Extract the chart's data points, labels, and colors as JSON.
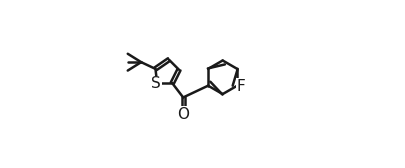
{
  "figsize": [
    4.05,
    1.68
  ],
  "dpi": 100,
  "background_color": "#ffffff",
  "line_color": "#1a1a1a",
  "line_width": 1.8,
  "font_size": 11,
  "S_label": "S",
  "O_label": "O",
  "F_label": "F"
}
